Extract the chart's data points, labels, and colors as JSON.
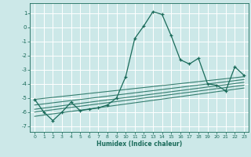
{
  "title": "",
  "xlabel": "Humidex (Indice chaleur)",
  "ylabel": "",
  "background_color": "#cce8e8",
  "grid_color": "#ffffff",
  "line_color": "#1a6b5a",
  "xlim": [
    -0.5,
    23.5
  ],
  "ylim": [
    -7.4,
    1.7
  ],
  "yticks": [
    1,
    0,
    -1,
    -2,
    -3,
    -4,
    -5,
    -6,
    -7
  ],
  "xticks": [
    0,
    1,
    2,
    3,
    4,
    5,
    6,
    7,
    8,
    9,
    10,
    11,
    12,
    13,
    14,
    15,
    16,
    17,
    18,
    19,
    20,
    21,
    22,
    23
  ],
  "series": [
    [
      0,
      -5.1
    ],
    [
      1,
      -6.0
    ],
    [
      2,
      -6.6
    ],
    [
      3,
      -6.0
    ],
    [
      4,
      -5.3
    ],
    [
      5,
      -5.9
    ],
    [
      6,
      -5.8
    ],
    [
      7,
      -5.7
    ],
    [
      8,
      -5.5
    ],
    [
      9,
      -5.0
    ],
    [
      10,
      -3.5
    ],
    [
      11,
      -0.8
    ],
    [
      12,
      0.1
    ],
    [
      13,
      1.1
    ],
    [
      14,
      0.9
    ],
    [
      15,
      -0.6
    ],
    [
      16,
      -2.3
    ],
    [
      17,
      -2.6
    ],
    [
      18,
      -2.2
    ],
    [
      19,
      -4.0
    ],
    [
      20,
      -4.1
    ],
    [
      21,
      -4.5
    ],
    [
      22,
      -2.8
    ],
    [
      23,
      -3.4
    ]
  ],
  "extra_lines": [
    {
      "x": [
        0,
        23
      ],
      "y": [
        -5.1,
        -3.5
      ]
    },
    {
      "x": [
        0,
        23
      ],
      "y": [
        -5.5,
        -3.7
      ]
    },
    {
      "x": [
        0,
        23
      ],
      "y": [
        -5.8,
        -3.9
      ]
    },
    {
      "x": [
        0,
        23
      ],
      "y": [
        -6.0,
        -4.1
      ]
    },
    {
      "x": [
        0,
        23
      ],
      "y": [
        -6.3,
        -4.3
      ]
    }
  ]
}
